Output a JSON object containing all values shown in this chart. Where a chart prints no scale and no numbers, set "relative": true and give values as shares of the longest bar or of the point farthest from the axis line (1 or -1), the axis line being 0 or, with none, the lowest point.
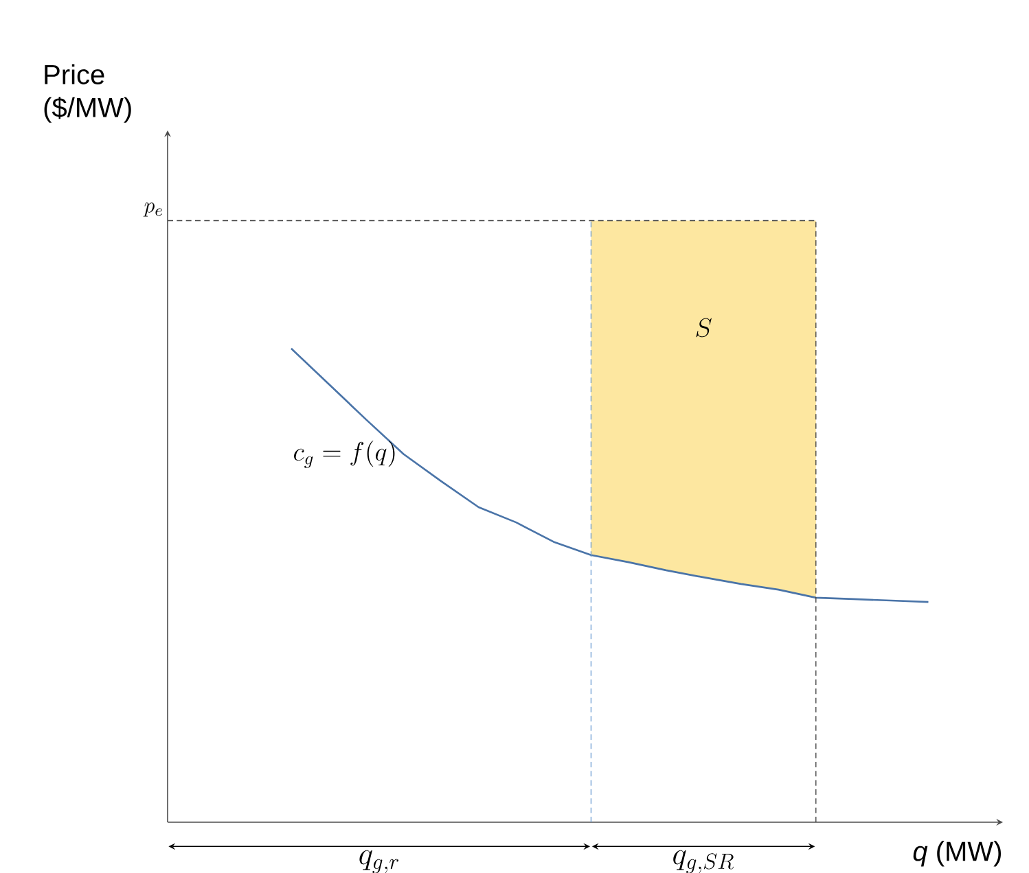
{
  "chart_data": {
    "type": "line",
    "relative": true,
    "xlabel": "*q* (MW)",
    "marker": "none",
    "line_style": "solid",
    "categories": [
      null,
      null,
      null,
      null,
      null,
      null,
      null,
      null,
      null,
      null,
      null,
      null,
      null,
      null,
      null,
      null,
      null,
      null
    ],
    "series": [
      {
        "color": "#4a74a8",
        "values": [
          1,
          0.925,
          0.85,
          0.777,
          0.72,
          0.665,
          0.633,
          0.592,
          0.564,
          0.549,
          0.532,
          0.517,
          0.503,
          0.491,
          0.474,
          0.471,
          0.468,
          0.465
        ]
      }
    ],
    "ref_lines": [
      {
        "axis": "y",
        "value": 1.27,
        "label": "p_e",
        "color": "#404040",
        "line_style": "dashed"
      }
    ],
    "annotations": [
      "Price ($/MW)",
      "c_g = f(q)",
      "S",
      "q_{g,r}",
      "q_{g,SR}"
    ]
  }
}
